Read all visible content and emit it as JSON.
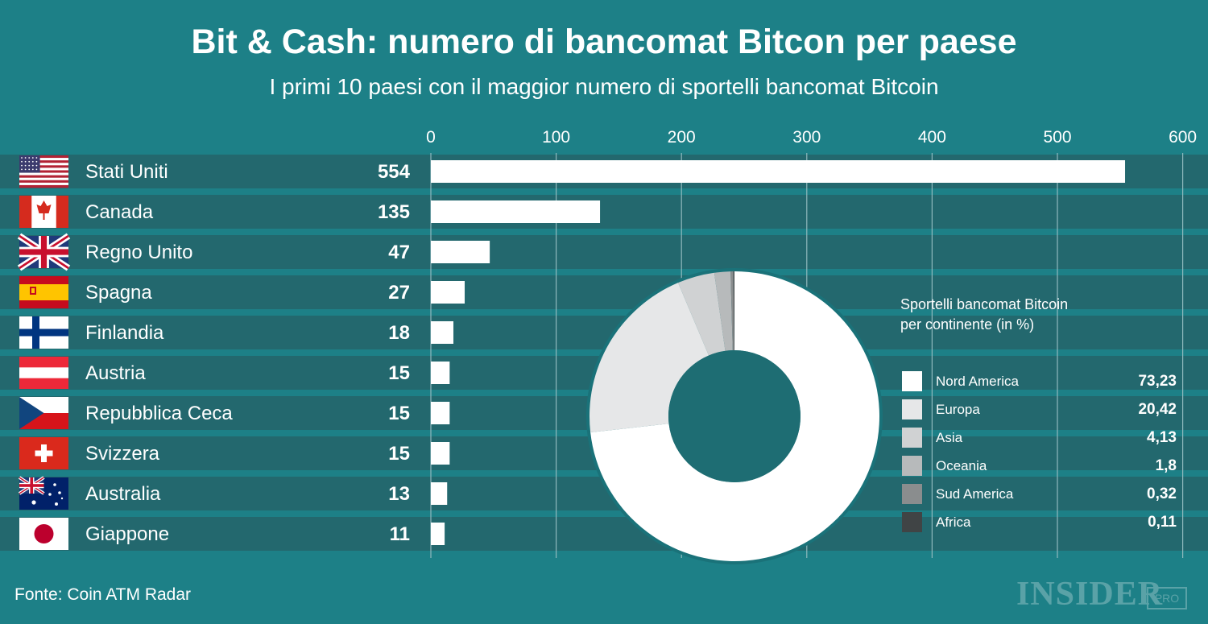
{
  "colors": {
    "background": "#1d8087",
    "row": "#23686e",
    "bar": "#ffffff",
    "grid": "#8fb9bd"
  },
  "title": "Bit & Cash: numero di bancomat Bitcon per paese",
  "subtitle": "I primi 10 paesi con il maggior numero di sportelli bancomat Bitcoin",
  "source": "Fonte: Coin ATM Radar",
  "brand": "INSIDER",
  "brand_tag": "PRO",
  "chart_data": [
    {
      "type": "bar",
      "orientation": "horizontal",
      "categories": [
        "Stati Uniti",
        "Canada",
        "Regno Unito",
        "Spagna",
        "Finlandia",
        "Austria",
        "Repubblica Ceca",
        "Svizzera",
        "Australia",
        "Giappone"
      ],
      "values": [
        554,
        135,
        47,
        27,
        18,
        15,
        15,
        15,
        13,
        11
      ],
      "flags": [
        "flag-usa-icon",
        "flag-canada-icon",
        "flag-uk-icon",
        "flag-spain-icon",
        "flag-finland-icon",
        "flag-austria-icon",
        "flag-czech-icon",
        "flag-switzerland-icon",
        "flag-australia-icon",
        "flag-japan-icon"
      ],
      "xlim": [
        0,
        600
      ],
      "xticks": [
        0,
        100,
        200,
        300,
        400,
        500,
        600
      ],
      "grid": true
    },
    {
      "type": "pie",
      "donut": true,
      "title": "Sportelli bancomat Bitcoin per continente (in %)",
      "title_lines": [
        "Sportelli bancomat Bitcoin",
        "per continente (in %)"
      ],
      "labels": [
        "Nord America",
        "Europa",
        "Asia",
        "Oceania",
        "Sud America",
        "Africa"
      ],
      "values": [
        73.23,
        20.42,
        4.13,
        1.8,
        0.32,
        0.11
      ],
      "display_values": [
        "73,23",
        "20,42",
        "4,13",
        "1,8",
        "0,32",
        "0,11"
      ],
      "colors": [
        "#ffffff",
        "#e6e7e8",
        "#d0d2d3",
        "#b7babb",
        "#8a8d8e",
        "#404445"
      ],
      "legend": "right"
    }
  ]
}
